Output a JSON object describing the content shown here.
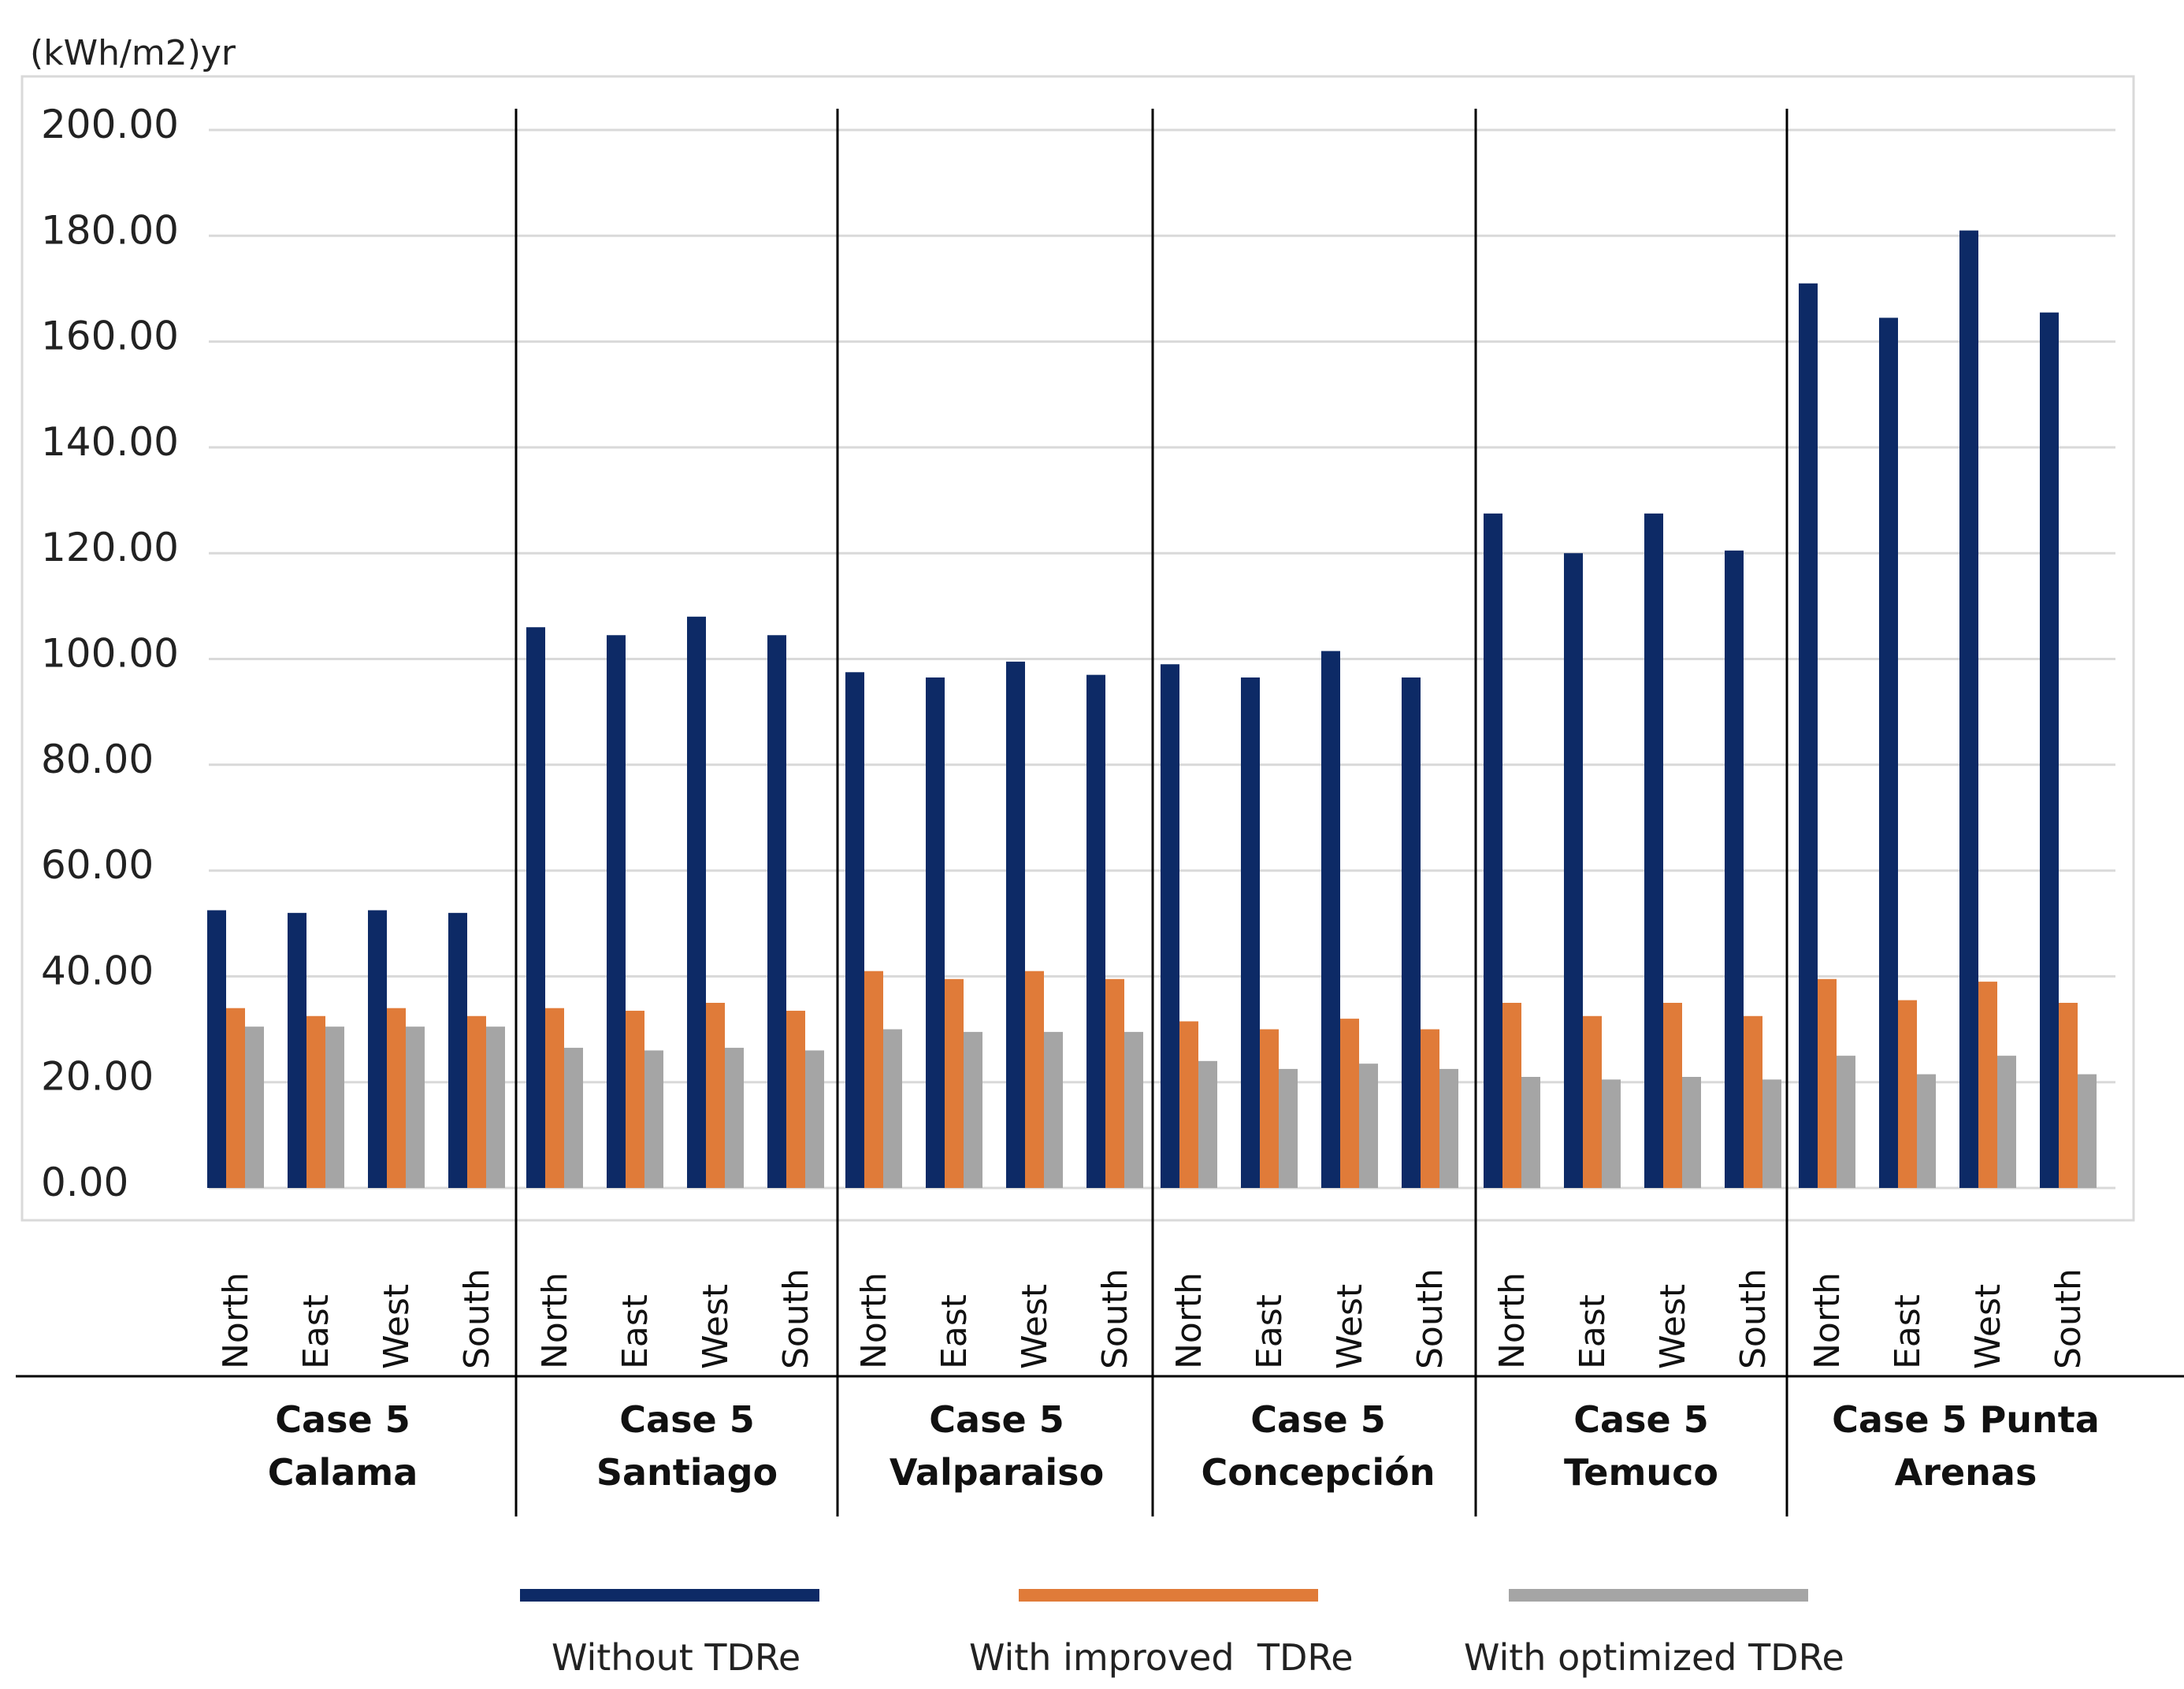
{
  "chart_data": {
    "type": "bar",
    "ylabel": "(kWh/m2)yr",
    "ylim": [
      0,
      200
    ],
    "ytick_step": 20,
    "y_ticks": [
      "0.00",
      "20.00",
      "40.00",
      "60.00",
      "80.00",
      "100.00",
      "120.00",
      "140.00",
      "160.00",
      "180.00",
      "200.00"
    ],
    "grid": true,
    "legend_position": "bottom",
    "groups": [
      {
        "line1": "Case 5",
        "line2": "Calama"
      },
      {
        "line1": "Case 5",
        "line2": "Santiago"
      },
      {
        "line1": "Case 5",
        "line2": "Valparaiso"
      },
      {
        "line1": "Case 5",
        "line2": "Concepción"
      },
      {
        "line1": "Case 5",
        "line2": "Temuco"
      },
      {
        "line1": "Case 5 Punta",
        "line2": "Arenas"
      }
    ],
    "orientations": [
      "North",
      "East",
      "West",
      "South"
    ],
    "series": [
      {
        "name": "Without TDRe",
        "color": "#0d2a66",
        "values": [
          52.5,
          52,
          52.5,
          52,
          106,
          104.5,
          108,
          104.5,
          97.5,
          96.5,
          99.5,
          97,
          99,
          96.5,
          101.5,
          96.5,
          127.5,
          120,
          127.5,
          120.5,
          171,
          164.5,
          181,
          165.5
        ]
      },
      {
        "name": "With improved  TDRe",
        "color": "#e07b39",
        "values": [
          34,
          32.5,
          34,
          32.5,
          34,
          33.5,
          35,
          33.5,
          41,
          39.5,
          41,
          39.5,
          31.5,
          30,
          32,
          30,
          35,
          32.5,
          35,
          32.5,
          39.5,
          35.5,
          39,
          35
        ]
      },
      {
        "name": "With optimized TDRe",
        "color": "#a5a5a5",
        "values": [
          30.5,
          30.5,
          30.5,
          30.5,
          26.5,
          26,
          26.5,
          26,
          30,
          29.5,
          29.5,
          29.5,
          24,
          22.5,
          23.5,
          22.5,
          21,
          20.5,
          21,
          20.5,
          25,
          21.5,
          25,
          21.5
        ]
      }
    ]
  }
}
